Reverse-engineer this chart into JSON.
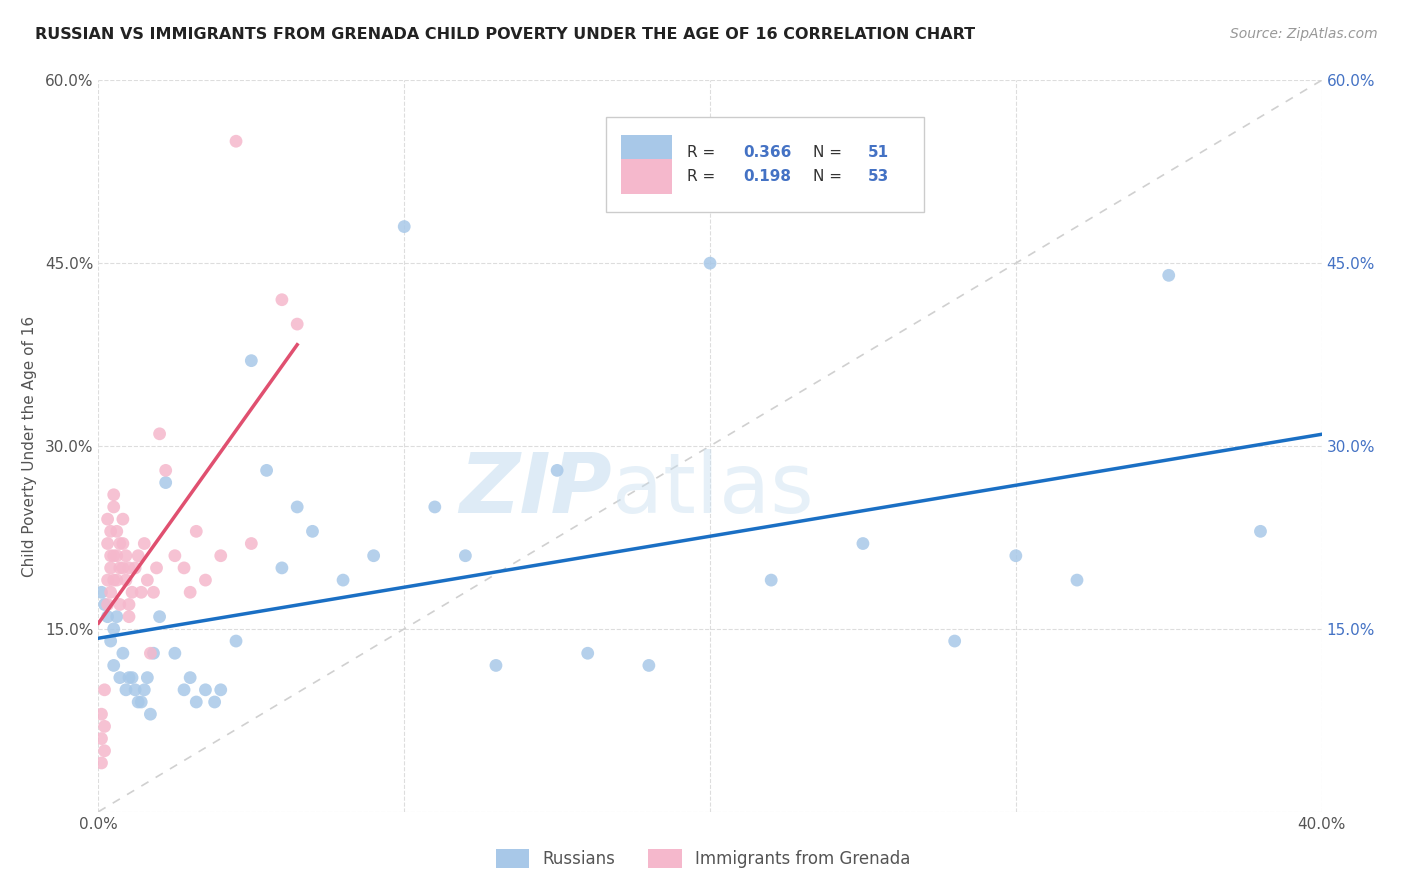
{
  "title": "RUSSIAN VS IMMIGRANTS FROM GRENADA CHILD POVERTY UNDER THE AGE OF 16 CORRELATION CHART",
  "source": "Source: ZipAtlas.com",
  "ylabel": "Child Poverty Under the Age of 16",
  "x_min": 0.0,
  "x_max": 0.4,
  "y_min": 0.0,
  "y_max": 0.6,
  "russian_R": "0.366",
  "russian_N": "51",
  "grenada_R": "0.198",
  "grenada_N": "53",
  "russian_color": "#a8c8e8",
  "grenada_color": "#f5b8cc",
  "russian_line_color": "#1a6fc4",
  "grenada_line_color": "#e05070",
  "ref_line_color": "#d0d0d0",
  "watermark_color": "#ddeeff",
  "russians_x": [
    0.001,
    0.002,
    0.003,
    0.004,
    0.005,
    0.005,
    0.006,
    0.007,
    0.008,
    0.009,
    0.01,
    0.011,
    0.012,
    0.013,
    0.014,
    0.015,
    0.016,
    0.017,
    0.018,
    0.02,
    0.022,
    0.025,
    0.028,
    0.03,
    0.032,
    0.035,
    0.038,
    0.04,
    0.045,
    0.05,
    0.055,
    0.06,
    0.065,
    0.07,
    0.08,
    0.09,
    0.1,
    0.11,
    0.12,
    0.13,
    0.15,
    0.16,
    0.18,
    0.2,
    0.22,
    0.25,
    0.28,
    0.3,
    0.32,
    0.35,
    0.38
  ],
  "russians_y": [
    0.18,
    0.17,
    0.16,
    0.14,
    0.12,
    0.15,
    0.16,
    0.11,
    0.13,
    0.1,
    0.11,
    0.11,
    0.1,
    0.09,
    0.09,
    0.1,
    0.11,
    0.08,
    0.13,
    0.16,
    0.27,
    0.13,
    0.1,
    0.11,
    0.09,
    0.1,
    0.09,
    0.1,
    0.14,
    0.37,
    0.28,
    0.2,
    0.25,
    0.23,
    0.19,
    0.21,
    0.48,
    0.25,
    0.21,
    0.12,
    0.28,
    0.13,
    0.12,
    0.45,
    0.19,
    0.22,
    0.14,
    0.21,
    0.19,
    0.44,
    0.23
  ],
  "grenada_x": [
    0.001,
    0.001,
    0.001,
    0.002,
    0.002,
    0.002,
    0.003,
    0.003,
    0.003,
    0.003,
    0.004,
    0.004,
    0.004,
    0.004,
    0.005,
    0.005,
    0.005,
    0.005,
    0.006,
    0.006,
    0.006,
    0.007,
    0.007,
    0.007,
    0.008,
    0.008,
    0.008,
    0.009,
    0.009,
    0.01,
    0.01,
    0.01,
    0.011,
    0.012,
    0.013,
    0.014,
    0.015,
    0.016,
    0.017,
    0.018,
    0.019,
    0.02,
    0.022,
    0.025,
    0.028,
    0.03,
    0.032,
    0.035,
    0.04,
    0.045,
    0.05,
    0.06,
    0.065
  ],
  "grenada_y": [
    0.04,
    0.06,
    0.08,
    0.05,
    0.07,
    0.1,
    0.17,
    0.19,
    0.22,
    0.24,
    0.18,
    0.21,
    0.23,
    0.2,
    0.21,
    0.25,
    0.26,
    0.19,
    0.19,
    0.21,
    0.23,
    0.17,
    0.2,
    0.22,
    0.2,
    0.22,
    0.24,
    0.19,
    0.21,
    0.17,
    0.2,
    0.16,
    0.18,
    0.2,
    0.21,
    0.18,
    0.22,
    0.19,
    0.13,
    0.18,
    0.2,
    0.31,
    0.28,
    0.21,
    0.2,
    0.18,
    0.23,
    0.19,
    0.21,
    0.55,
    0.22,
    0.42,
    0.4
  ]
}
